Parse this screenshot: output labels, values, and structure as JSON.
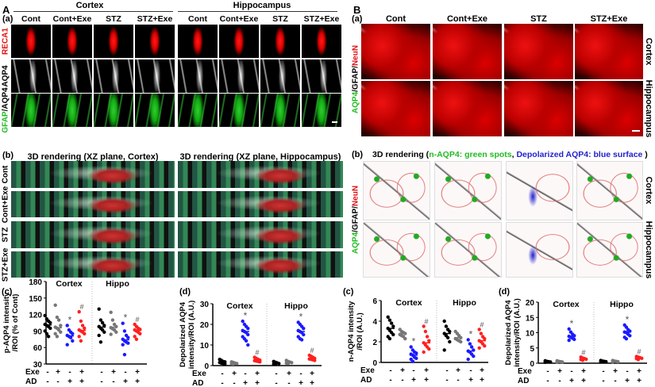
{
  "panelA": {
    "letter": "A",
    "regions": [
      "Cortex",
      "Hippocampus"
    ],
    "sub_a": "(a)",
    "columns": [
      "Cont",
      "Cont+Exe",
      "STZ",
      "STZ+Exe",
      "Cont",
      "Cont+Exe",
      "STZ",
      "STZ+Exe"
    ],
    "row_labels": [
      "RECA1",
      "AQP4",
      "GFAP/AQP4"
    ],
    "row_label_parts": {
      "gfap": "GFAP",
      "slash": "/",
      "aqp4": "AQP4"
    },
    "sub_b": "(b)",
    "render_titles": [
      "3D rendering (XZ plane, Cortex)",
      "3D rendering (XZ plane, Hippocampus)"
    ],
    "render_rows": [
      "Cont",
      "Cont+Exe",
      "STZ",
      "STZ+Exe"
    ]
  },
  "panelB": {
    "letter": "B",
    "sub_a": "(a)",
    "columns": [
      "Cont",
      "Cont+Exe",
      "STZ",
      "STZ+Exe"
    ],
    "left_label": {
      "aqp4": "AQP4",
      "gfap": "/GFAP/",
      "neun": "NeuN"
    },
    "right_labels": [
      "Cortex",
      "Hippocampus"
    ],
    "sub_b": "(b)",
    "render_title": {
      "prefix": "3D rendering (",
      "green": "n-AQP4: green spots",
      "sep": ", ",
      "blue": "Depolarized AQP4: blue surface",
      "suffix": " )"
    }
  },
  "colors": {
    "cont": "#000000",
    "exe": "#777777",
    "stz": "#1a1aff",
    "stz_exe": "#ff2020",
    "green_text": "#22bb22",
    "blue_text": "#2222cc",
    "red_text": "#e01010"
  },
  "chart_data": [
    {
      "panel": "(c)",
      "type": "scatter",
      "ylabel": [
        "p-AQP4 intensity",
        "/ROI (% of Cont)"
      ],
      "ylim": [
        30,
        180
      ],
      "yticks": [
        30,
        60,
        90,
        120,
        150,
        180
      ],
      "regions": [
        "Cortex",
        "Hippo"
      ],
      "row_labels": [
        "Exe",
        "AD"
      ],
      "exe": [
        "-",
        "+",
        "-",
        "+",
        "-",
        "+",
        "-",
        "+"
      ],
      "ad": [
        "-",
        "-",
        "+",
        "+",
        "-",
        "-",
        "+",
        "+"
      ],
      "groups": [
        {
          "color": "cont",
          "mean": 101,
          "mark": "",
          "points": [
            118,
            112,
            108,
            105,
            102,
            100,
            98,
            95,
            90,
            85,
            80
          ]
        },
        {
          "color": "exe",
          "mean": 96,
          "mark": "",
          "points": [
            137,
            115,
            110,
            100,
            97,
            95,
            92,
            88,
            85,
            80
          ]
        },
        {
          "color": "stz",
          "mean": 81,
          "mark": "*",
          "points": [
            100,
            92,
            88,
            85,
            82,
            80,
            78,
            72,
            65
          ]
        },
        {
          "color": "stz_exe",
          "mean": 91,
          "mark": "#",
          "points": [
            125,
            108,
            100,
            95,
            92,
            90,
            88,
            85,
            80,
            72
          ]
        },
        {
          "color": "cont",
          "mean": 97,
          "mark": "",
          "points": [
            130,
            110,
            105,
            100,
            98,
            95,
            92,
            88,
            82,
            70
          ]
        },
        {
          "color": "exe",
          "mean": 97,
          "mark": "",
          "points": [
            124,
            110,
            102,
            98,
            96,
            94,
            92,
            88,
            84
          ]
        },
        {
          "color": "stz",
          "mean": 74,
          "mark": "*",
          "points": [
            104,
            90,
            82,
            78,
            75,
            72,
            70,
            68,
            65,
            47
          ]
        },
        {
          "color": "stz_exe",
          "mean": 91,
          "mark": "#",
          "points": [
            102,
            98,
            95,
            93,
            92,
            90,
            88,
            85,
            80,
            75
          ]
        }
      ]
    },
    {
      "panel": "(d)",
      "type": "scatter",
      "ylabel": [
        "Depolarized AQP4",
        "intensity/ROI (A.U.)"
      ],
      "ylim": [
        0,
        30
      ],
      "yticks": [
        0,
        10,
        20,
        30
      ],
      "regions": [
        "Cortex",
        "Hippo"
      ],
      "row_labels": [
        "Exe",
        "AD"
      ],
      "exe": [
        "-",
        "+",
        "-",
        "+",
        "-",
        "+",
        "-",
        "+"
      ],
      "ad": [
        "-",
        "-",
        "+",
        "+",
        "-",
        "-",
        "+",
        "+"
      ],
      "groups": [
        {
          "color": "cont",
          "mean": 1.5,
          "mark": "",
          "points": [
            3,
            2.5,
            2,
            1.8,
            1.5,
            1.2,
            1,
            0.8
          ]
        },
        {
          "color": "exe",
          "mean": 1.2,
          "mark": "",
          "points": [
            1.8,
            1.5,
            1.2,
            1,
            0.9,
            0.8
          ]
        },
        {
          "color": "stz",
          "mean": 16.5,
          "mark": "*",
          "points": [
            21.5,
            20,
            19,
            18,
            17,
            16.5,
            16,
            15,
            14,
            13,
            12,
            10
          ]
        },
        {
          "color": "stz_exe",
          "mean": 2.5,
          "mark": "#",
          "points": [
            4,
            3.5,
            3,
            2.6,
            2.4,
            2.2,
            2,
            1.8
          ]
        },
        {
          "color": "cont",
          "mean": 1.2,
          "mark": "",
          "points": [
            2,
            1.6,
            1.3,
            1,
            0.8,
            0.6
          ]
        },
        {
          "color": "exe",
          "mean": 1.5,
          "mark": "",
          "points": [
            2.5,
            2,
            1.7,
            1.4,
            1.2,
            1
          ]
        },
        {
          "color": "stz",
          "mean": 16.5,
          "mark": "*",
          "points": [
            21,
            20,
            19,
            18,
            17,
            16.5,
            16,
            15,
            14,
            13,
            12.5
          ]
        },
        {
          "color": "stz_exe",
          "mean": 3.2,
          "mark": "#",
          "points": [
            5,
            4.5,
            4,
            3.5,
            3.2,
            3,
            2.8,
            2.5
          ]
        }
      ]
    },
    {
      "panel": "(c)",
      "type": "scatter",
      "ylabel": [
        "n-AQP4 intensity",
        "/ROI (A.U.)"
      ],
      "ylim": [
        0,
        6
      ],
      "yticks": [
        0,
        2,
        4,
        6
      ],
      "regions": [
        "Cortex",
        "Hippo"
      ],
      "row_labels": [
        "Exe",
        "AD"
      ],
      "exe": [
        "-",
        "+",
        "-",
        "+",
        "-",
        "+",
        "-",
        "+"
      ],
      "ad": [
        "-",
        "-",
        "+",
        "+",
        "-",
        "-",
        "+",
        "+"
      ],
      "groups": [
        {
          "color": "cont",
          "mean": 3.3,
          "mark": "",
          "points": [
            4.4,
            4.1,
            3.8,
            3.5,
            3.3,
            3.1,
            2.9,
            2.7,
            2.5,
            2.3
          ]
        },
        {
          "color": "exe",
          "mean": 2.8,
          "mark": "",
          "points": [
            3.2,
            3,
            2.9,
            2.8,
            2.7,
            2.6,
            2.5,
            2.3
          ]
        },
        {
          "color": "stz",
          "mean": 0.7,
          "mark": "*",
          "points": [
            1.5,
            1.2,
            1,
            0.9,
            0.8,
            0.7,
            0.5,
            0.4,
            0.3,
            0.1
          ]
        },
        {
          "color": "stz_exe",
          "mean": 1.9,
          "mark": "#",
          "points": [
            3.5,
            3,
            2.5,
            2.1,
            1.9,
            1.7,
            1.5,
            1.3,
            1
          ]
        },
        {
          "color": "cont",
          "mean": 2.8,
          "mark": "",
          "points": [
            4,
            3.5,
            3.2,
            3,
            2.8,
            2.6,
            2.4,
            2,
            1.2
          ]
        },
        {
          "color": "exe",
          "mean": 2.4,
          "mark": "",
          "points": [
            3,
            2.8,
            2.6,
            2.4,
            2.3,
            2.2,
            2.1,
            2
          ]
        },
        {
          "color": "stz",
          "mean": 1.1,
          "mark": "*",
          "points": [
            2.2,
            1.8,
            1.5,
            1.2,
            1.1,
            1,
            0.8,
            0.6,
            0.3
          ]
        },
        {
          "color": "stz_exe",
          "mean": 2.1,
          "mark": "#",
          "points": [
            3.2,
            2.8,
            2.5,
            2.3,
            2.1,
            2,
            1.8,
            1.6,
            1.4
          ]
        }
      ]
    },
    {
      "panel": "(d)",
      "type": "scatter",
      "ylabel": [
        "Depolarized AQP4",
        "intensity/ROI (A.U.)"
      ],
      "ylim": [
        0,
        20
      ],
      "yticks": [
        0,
        5,
        10,
        15,
        20
      ],
      "regions": [
        "Cortex",
        "Hippo"
      ],
      "row_labels": [
        "Exe",
        "AD"
      ],
      "exe": [
        "-",
        "+",
        "-",
        "+",
        "-",
        "+",
        "-",
        "+"
      ],
      "ad": [
        "-",
        "-",
        "+",
        "+",
        "-",
        "-",
        "+",
        "+"
      ],
      "groups": [
        {
          "color": "cont",
          "mean": 0.5,
          "mark": "",
          "points": [
            0.8,
            0.6,
            0.5,
            0.4,
            0.3
          ]
        },
        {
          "color": "exe",
          "mean": 0.5,
          "mark": "",
          "points": [
            0.8,
            0.6,
            0.5,
            0.4,
            0.3
          ]
        },
        {
          "color": "stz",
          "mean": 8.8,
          "mark": "*",
          "points": [
            11.2,
            10.2,
            9.5,
            9,
            8.8,
            8.5,
            8.2,
            7.8,
            7.5
          ]
        },
        {
          "color": "stz_exe",
          "mean": 1.4,
          "mark": "#",
          "points": [
            2,
            1.7,
            1.5,
            1.3,
            1.2,
            1
          ]
        },
        {
          "color": "cont",
          "mean": 0.6,
          "mark": "",
          "points": [
            0.9,
            0.7,
            0.6,
            0.5,
            0.4
          ]
        },
        {
          "color": "exe",
          "mean": 0.6,
          "mark": "",
          "points": [
            0.9,
            0.7,
            0.6,
            0.5,
            0.4
          ]
        },
        {
          "color": "stz",
          "mean": 10.2,
          "mark": "*",
          "points": [
            12.5,
            11.8,
            11,
            10.5,
            10.2,
            10,
            9.5,
            9,
            8.5,
            8
          ]
        },
        {
          "color": "stz_exe",
          "mean": 1.7,
          "mark": "#",
          "points": [
            2.2,
            2,
            1.8,
            1.6,
            1.5,
            1.2
          ]
        }
      ]
    }
  ]
}
